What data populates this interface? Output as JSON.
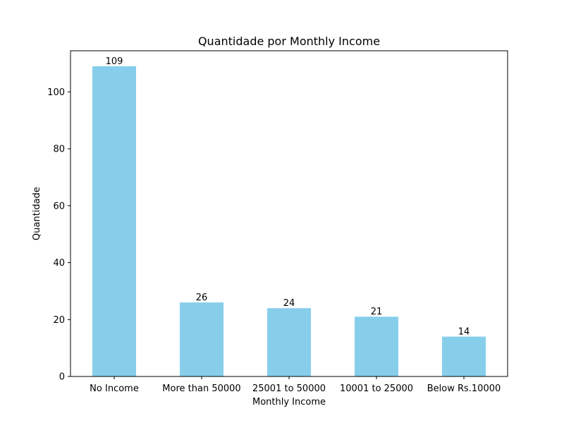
{
  "chart_data": {
    "type": "bar",
    "title": "Quantidade por Monthly Income",
    "xlabel": "Monthly Income",
    "ylabel": "Quantidade",
    "categories": [
      "No Income",
      "More than 50000",
      "25001 to 50000",
      "10001 to 25000",
      "Below Rs.10000"
    ],
    "values": [
      109,
      26,
      24,
      21,
      14
    ],
    "ylim": [
      0,
      114.45
    ],
    "yticks": [
      0,
      20,
      40,
      60,
      80,
      100
    ],
    "bar_color": "#87ceeb",
    "grid": false,
    "legend": "none"
  }
}
